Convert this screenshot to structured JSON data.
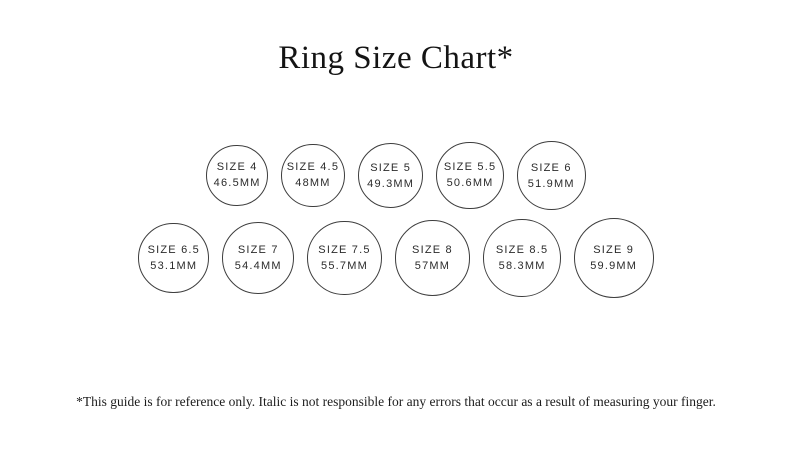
{
  "page": {
    "title": "Ring Size Chart*",
    "footnote": "*This guide is for reference only. Italic is not responsible for any errors that occur as a result of measuring your finger."
  },
  "colors": {
    "background": "#ffffff",
    "text": "#1c1c1c",
    "circle_border": "#3d3d3d",
    "circle_fill": "#ffffff"
  },
  "chart_data": {
    "type": "table",
    "title": "Ring Size Chart*",
    "unit_label": "MM",
    "rows": [
      {
        "circles": [
          {
            "size_label": "SIZE 4",
            "diameter_label": "46.5MM",
            "diameter_mm": 46.5
          },
          {
            "size_label": "SIZE 4.5",
            "diameter_label": "48MM",
            "diameter_mm": 48
          },
          {
            "size_label": "SIZE 5",
            "diameter_label": "49.3MM",
            "diameter_mm": 49.3
          },
          {
            "size_label": "SIZE 5.5",
            "diameter_label": "50.6MM",
            "diameter_mm": 50.6
          },
          {
            "size_label": "SIZE 6",
            "diameter_label": "51.9MM",
            "diameter_mm": 51.9
          }
        ]
      },
      {
        "circles": [
          {
            "size_label": "SIZE 6.5",
            "diameter_label": "53.1MM",
            "diameter_mm": 53.1
          },
          {
            "size_label": "SIZE 7",
            "diameter_label": "54.4MM",
            "diameter_mm": 54.4
          },
          {
            "size_label": "SIZE 7.5",
            "diameter_label": "55.7MM",
            "diameter_mm": 55.7
          },
          {
            "size_label": "SIZE 8",
            "diameter_label": "57MM",
            "diameter_mm": 57
          },
          {
            "size_label": "SIZE 8.5",
            "diameter_label": "58.3MM",
            "diameter_mm": 58.3
          },
          {
            "size_label": "SIZE 9",
            "diameter_label": "59.9MM",
            "diameter_mm": 59.9
          }
        ]
      }
    ]
  }
}
